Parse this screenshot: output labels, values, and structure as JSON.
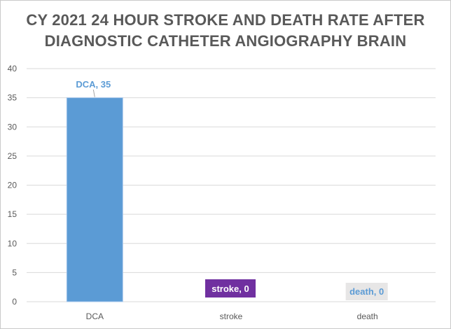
{
  "chart_data": {
    "type": "bar",
    "title": [
      "CY 2021 24 HOUR STROKE AND DEATH RATE AFTER",
      "DIAGNOSTIC CATHETER  ANGIOGRAPHY BRAIN"
    ],
    "categories": [
      "DCA",
      "stroke",
      "death"
    ],
    "values": [
      35,
      0,
      0
    ],
    "data_labels": [
      "DCA, 35",
      "stroke, 0",
      "death, 0"
    ],
    "xlabel": "",
    "ylabel": "",
    "ylim": [
      0,
      40
    ],
    "yticks": [
      "0",
      "5",
      "10",
      "15",
      "20",
      "25",
      "30",
      "35",
      "40"
    ],
    "grid": true,
    "legend": "none",
    "colors": {
      "bar": "#5b9bd5",
      "bar_edge": "#a9c8ec",
      "gridline": "#d9d9d9",
      "label_dca_text": "#5b9bd5",
      "label_stroke_bg": "#7030a0",
      "label_stroke_text": "#ffffff",
      "label_death_bg": "#e7e6e6",
      "label_death_text": "#5b9bd5"
    }
  }
}
